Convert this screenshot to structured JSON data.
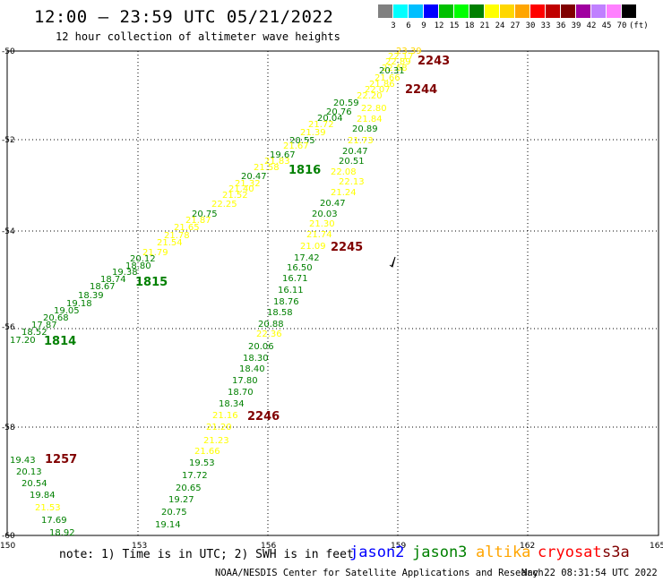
{
  "header": {
    "title": "12:00 – 23:59 UTC 05/21/2022",
    "subtitle": "12 hour collection of altimeter wave heights"
  },
  "scale": {
    "colors": [
      "#808080",
      "#00ffff",
      "#00bfff",
      "#0000ff",
      "#00c000",
      "#00ff00",
      "#008000",
      "#ffff00",
      "#ffd700",
      "#ffa500",
      "#ff0000",
      "#c00000",
      "#800000",
      "#a000a0",
      "#c080ff",
      "#ff80ff",
      "#000000"
    ],
    "labels": [
      "3",
      "6",
      "9",
      "12",
      "15",
      "18",
      "21",
      "24",
      "27",
      "30",
      "33",
      "36",
      "39",
      "42",
      "45",
      "70",
      "(ft)"
    ]
  },
  "axes": {
    "x_ticks": [
      "150",
      "153",
      "156",
      "159",
      "162",
      "165"
    ],
    "y_ticks": [
      "-50",
      "-52",
      "-54",
      "-56",
      "-58",
      "-60"
    ]
  },
  "tracks": {
    "labels": [
      {
        "text": "2243",
        "color": "#800000"
      },
      {
        "text": "2244",
        "color": "#800000"
      },
      {
        "text": "2245",
        "color": "#800000"
      },
      {
        "text": "2246",
        "color": "#800000"
      },
      {
        "text": "1257",
        "color": "#800000"
      },
      {
        "text": "1816",
        "color": "#008000"
      },
      {
        "text": "1815",
        "color": "#008000"
      },
      {
        "text": "1814",
        "color": "#008000"
      }
    ],
    "values": [
      {
        "t": "23.39",
        "c": "#ffd700"
      },
      {
        "t": "22.17",
        "c": "#ffff00"
      },
      {
        "t": "22.89",
        "c": "#ffff00"
      },
      {
        "t": "22.68",
        "c": "#ffff00"
      },
      {
        "t": "20.31",
        "c": "#008000"
      },
      {
        "t": "21.66",
        "c": "#ffff00"
      },
      {
        "t": "21.86",
        "c": "#ffff00"
      },
      {
        "t": "22.07",
        "c": "#ffff00"
      },
      {
        "t": "22.20",
        "c": "#ffff00"
      },
      {
        "t": "20.59",
        "c": "#008000"
      },
      {
        "t": "20.76",
        "c": "#008000"
      },
      {
        "t": "20.04",
        "c": "#008000"
      },
      {
        "t": "21.72",
        "c": "#ffff00"
      },
      {
        "t": "21.39",
        "c": "#ffff00"
      },
      {
        "t": "20.55",
        "c": "#008000"
      },
      {
        "t": "21.67",
        "c": "#ffff00"
      },
      {
        "t": "19.67",
        "c": "#008000"
      },
      {
        "t": "21.83",
        "c": "#ffff00"
      },
      {
        "t": "21.58",
        "c": "#ffff00"
      },
      {
        "t": "20.47",
        "c": "#008000"
      },
      {
        "t": "21.32",
        "c": "#ffff00"
      },
      {
        "t": "21.40",
        "c": "#ffff00"
      },
      {
        "t": "21.52",
        "c": "#ffff00"
      },
      {
        "t": "22.25",
        "c": "#ffff00"
      },
      {
        "t": "20.75",
        "c": "#008000"
      },
      {
        "t": "21.87",
        "c": "#ffff00"
      },
      {
        "t": "21.65",
        "c": "#ffff00"
      },
      {
        "t": "21.78",
        "c": "#ffff00"
      },
      {
        "t": "21.54",
        "c": "#ffff00"
      },
      {
        "t": "21.79",
        "c": "#ffff00"
      },
      {
        "t": "20.12",
        "c": "#008000"
      },
      {
        "t": "18.80",
        "c": "#008000"
      },
      {
        "t": "19.38",
        "c": "#008000"
      },
      {
        "t": "18.74",
        "c": "#008000"
      },
      {
        "t": "18.67",
        "c": "#008000"
      },
      {
        "t": "18.39",
        "c": "#008000"
      },
      {
        "t": "19.18",
        "c": "#008000"
      },
      {
        "t": "19.05",
        "c": "#008000"
      },
      {
        "t": "20.68",
        "c": "#008000"
      },
      {
        "t": "17.87",
        "c": "#008000"
      },
      {
        "t": "18.52",
        "c": "#008000"
      },
      {
        "t": "17.20",
        "c": "#008000"
      },
      {
        "t": "22.80",
        "c": "#ffff00"
      },
      {
        "t": "21.84",
        "c": "#ffff00"
      },
      {
        "t": "20.89",
        "c": "#008000"
      },
      {
        "t": "21.73",
        "c": "#ffff00"
      },
      {
        "t": "20.47",
        "c": "#008000"
      },
      {
        "t": "20.51",
        "c": "#008000"
      },
      {
        "t": "22.08",
        "c": "#ffff00"
      },
      {
        "t": "22.13",
        "c": "#ffff00"
      },
      {
        "t": "21.24",
        "c": "#ffff00"
      },
      {
        "t": "20.47",
        "c": "#008000"
      },
      {
        "t": "20.03",
        "c": "#008000"
      },
      {
        "t": "21.74",
        "c": "#ffff00"
      },
      {
        "t": "21.30",
        "c": "#ffff00"
      },
      {
        "t": "21.09",
        "c": "#ffff00"
      },
      {
        "t": "17.42",
        "c": "#008000"
      },
      {
        "t": "16.50",
        "c": "#008000"
      },
      {
        "t": "16.71",
        "c": "#008000"
      },
      {
        "t": "16.11",
        "c": "#008000"
      },
      {
        "t": "18.76",
        "c": "#008000"
      },
      {
        "t": "18.58",
        "c": "#008000"
      },
      {
        "t": "20.88",
        "c": "#008000"
      },
      {
        "t": "22.36",
        "c": "#ffff00"
      },
      {
        "t": "20.06",
        "c": "#008000"
      },
      {
        "t": "18.30",
        "c": "#008000"
      },
      {
        "t": "18.40",
        "c": "#008000"
      },
      {
        "t": "17.80",
        "c": "#008000"
      },
      {
        "t": "18.70",
        "c": "#008000"
      },
      {
        "t": "18.34",
        "c": "#008000"
      },
      {
        "t": "21.16",
        "c": "#ffff00"
      },
      {
        "t": "21.20",
        "c": "#ffff00"
      },
      {
        "t": "21.23",
        "c": "#ffff00"
      },
      {
        "t": "21.66",
        "c": "#ffff00"
      },
      {
        "t": "19.53",
        "c": "#008000"
      },
      {
        "t": "17.72",
        "c": "#008000"
      },
      {
        "t": "20.65",
        "c": "#008000"
      },
      {
        "t": "19.27",
        "c": "#008000"
      },
      {
        "t": "20.75",
        "c": "#008000"
      },
      {
        "t": "19.14",
        "c": "#008000"
      },
      {
        "t": "19.43",
        "c": "#008000"
      },
      {
        "t": "20.13",
        "c": "#008000"
      },
      {
        "t": "20.54",
        "c": "#008000"
      },
      {
        "t": "19.84",
        "c": "#008000"
      },
      {
        "t": "21.53",
        "c": "#ffff00"
      },
      {
        "t": "17.69",
        "c": "#008000"
      },
      {
        "t": "18.92",
        "c": "#008000"
      }
    ]
  },
  "footer": {
    "note": "note: 1) Time is in UTC; 2) SWH is in feet",
    "legend": [
      {
        "label": "jason2",
        "color": "#0000ff"
      },
      {
        "label": "jason3",
        "color": "#008000"
      },
      {
        "label": "altika",
        "color": "#ffa500"
      },
      {
        "label": "cryosat",
        "color": "#ff0000"
      },
      {
        "label": "s3a",
        "color": "#800000"
      }
    ],
    "credit": "NOAA/NESDIS Center for Satellite Applications and Research",
    "timestamp": "May 22 08:31:54 UTC 2022"
  }
}
